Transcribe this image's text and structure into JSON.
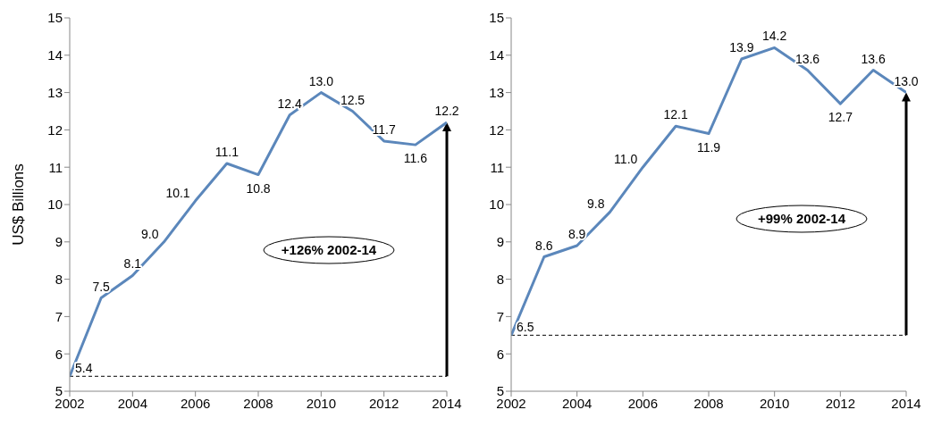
{
  "chart_data": [
    {
      "type": "line",
      "ylabel": "US$ Billions",
      "x": [
        2002,
        2003,
        2004,
        2005,
        2006,
        2007,
        2008,
        2009,
        2010,
        2011,
        2012,
        2013,
        2014
      ],
      "series": [
        {
          "color": "#5b87bb",
          "values": [
            5.4,
            7.5,
            8.1,
            9.0,
            10.1,
            11.1,
            10.8,
            12.4,
            13.0,
            12.5,
            11.7,
            11.6,
            12.2
          ],
          "value_labels": [
            "5.4",
            "7.5",
            "8.1",
            "9.0",
            "10.1",
            "11.1",
            "10.8",
            "12.4",
            "13.0",
            "12.5",
            "11.7",
            "11.6",
            "12.2"
          ]
        }
      ],
      "xlim": [
        2002,
        2014
      ],
      "xticks": [
        2002,
        2004,
        2006,
        2008,
        2010,
        2012,
        2014
      ],
      "ylim": [
        5,
        15
      ],
      "yticks": [
        5,
        6,
        7,
        8,
        9,
        10,
        11,
        12,
        13,
        14,
        15
      ],
      "ref_lines": [
        {
          "axis": "y",
          "value": 5.4,
          "color": "#000000",
          "line_style": "dashed"
        }
      ],
      "annotations": [
        "+126% 2002-14"
      ],
      "grid": false,
      "legend": false,
      "marker": "none",
      "line_style": "solid"
    },
    {
      "type": "line",
      "x": [
        2002,
        2003,
        2004,
        2005,
        2006,
        2007,
        2008,
        2009,
        2010,
        2011,
        2012,
        2013,
        2014
      ],
      "series": [
        {
          "color": "#5b87bb",
          "values": [
            6.5,
            8.6,
            8.9,
            9.8,
            11.0,
            12.1,
            11.9,
            13.9,
            14.2,
            13.6,
            12.7,
            13.6,
            13.0
          ],
          "value_labels": [
            "6.5",
            "8.6",
            "8.9",
            "9.8",
            "11.0",
            "12.1",
            "11.9",
            "13.9",
            "14.2",
            "13.6",
            "12.7",
            "13.6",
            "13.0"
          ]
        }
      ],
      "xlim": [
        2002,
        2014
      ],
      "xticks": [
        2002,
        2004,
        2006,
        2008,
        2010,
        2012,
        2014
      ],
      "ylim": [
        5,
        15
      ],
      "yticks": [
        5,
        6,
        7,
        8,
        9,
        10,
        11,
        12,
        13,
        14,
        15
      ],
      "ref_lines": [
        {
          "axis": "y",
          "value": 6.5,
          "color": "#000000",
          "line_style": "dashed"
        }
      ],
      "annotations": [
        "+99% 2002-14"
      ],
      "grid": false,
      "legend": false,
      "marker": "none",
      "line_style": "solid"
    }
  ]
}
